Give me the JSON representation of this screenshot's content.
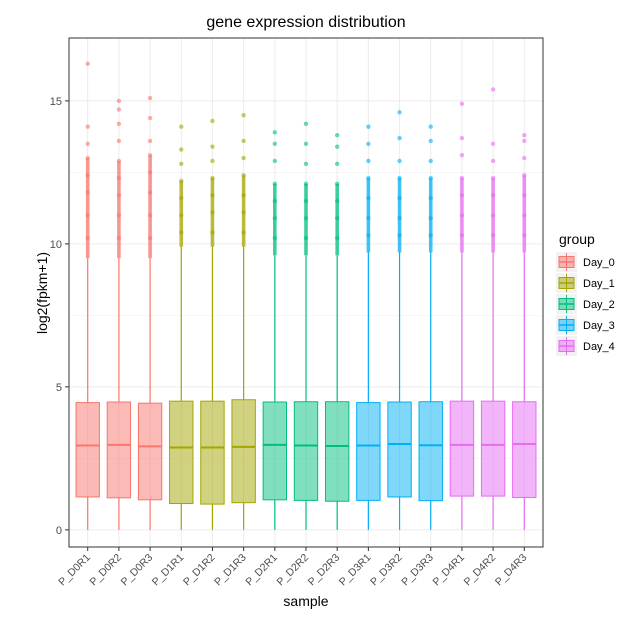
{
  "chart_data": {
    "type": "boxplot",
    "title": "gene expression distribution",
    "xlabel": "sample",
    "ylabel": "log2(fpkm+1)",
    "ylim": [
      -0.6,
      17.2
    ],
    "yticks": [
      0,
      5,
      10,
      15
    ],
    "grid": true,
    "legend": {
      "title": "group",
      "placement": "right",
      "entries": [
        "Day_0",
        "Day_1",
        "Day_2",
        "Day_3",
        "Day_4"
      ]
    },
    "group_colors": {
      "Day_0": "#F8766D",
      "Day_1": "#A3A500",
      "Day_2": "#00BF7D",
      "Day_3": "#00B0F6",
      "Day_4": "#E76BF3"
    },
    "samples": [
      {
        "name": "P_D0R1",
        "group": "Day_0",
        "q1": 1.15,
        "median": 2.95,
        "q3": 4.45,
        "whisker_low": 0,
        "whisker_high": 9.5,
        "outliers": [
          10.2,
          11.0,
          11.8,
          12.4,
          13.0,
          13.5,
          14.1,
          16.3
        ]
      },
      {
        "name": "P_D0R2",
        "group": "Day_0",
        "q1": 1.12,
        "median": 2.97,
        "q3": 4.47,
        "whisker_low": 0,
        "whisker_high": 9.5,
        "outliers": [
          10.2,
          11.0,
          11.7,
          12.3,
          12.9,
          13.6,
          14.2,
          14.7,
          15.0
        ]
      },
      {
        "name": "P_D0R3",
        "group": "Day_0",
        "q1": 1.05,
        "median": 2.92,
        "q3": 4.43,
        "whisker_low": 0,
        "whisker_high": 9.5,
        "outliers": [
          10.2,
          11.0,
          11.8,
          12.5,
          13.1,
          13.6,
          14.4,
          15.1
        ]
      },
      {
        "name": "P_D1R1",
        "group": "Day_1",
        "q1": 0.92,
        "median": 2.88,
        "q3": 4.5,
        "whisker_low": 0,
        "whisker_high": 9.9,
        "outliers": [
          10.4,
          11.0,
          11.6,
          12.2,
          12.8,
          13.3,
          14.1
        ]
      },
      {
        "name": "P_D1R2",
        "group": "Day_1",
        "q1": 0.9,
        "median": 2.88,
        "q3": 4.5,
        "whisker_low": 0,
        "whisker_high": 9.9,
        "outliers": [
          10.4,
          11.1,
          11.7,
          12.3,
          12.9,
          13.4,
          14.3
        ]
      },
      {
        "name": "P_D1R3",
        "group": "Day_1",
        "q1": 0.95,
        "median": 2.9,
        "q3": 4.55,
        "whisker_low": 0,
        "whisker_high": 9.9,
        "outliers": [
          10.4,
          11.1,
          11.7,
          12.4,
          13.0,
          13.6,
          14.5
        ]
      },
      {
        "name": "P_D2R1",
        "group": "Day_2",
        "q1": 1.05,
        "median": 2.97,
        "q3": 4.47,
        "whisker_low": 0,
        "whisker_high": 9.6,
        "outliers": [
          10.2,
          10.9,
          11.5,
          12.1,
          12.9,
          13.5,
          13.9
        ]
      },
      {
        "name": "P_D2R2",
        "group": "Day_2",
        "q1": 1.03,
        "median": 2.95,
        "q3": 4.48,
        "whisker_low": 0,
        "whisker_high": 9.6,
        "outliers": [
          10.2,
          10.9,
          11.5,
          12.1,
          12.8,
          13.5,
          14.2
        ]
      },
      {
        "name": "P_D2R3",
        "group": "Day_2",
        "q1": 1.0,
        "median": 2.93,
        "q3": 4.48,
        "whisker_low": 0,
        "whisker_high": 9.6,
        "outliers": [
          10.2,
          10.9,
          11.5,
          12.1,
          12.8,
          13.4,
          13.8
        ]
      },
      {
        "name": "P_D3R1",
        "group": "Day_3",
        "q1": 1.03,
        "median": 2.95,
        "q3": 4.45,
        "whisker_low": 0,
        "whisker_high": 9.7,
        "outliers": [
          10.3,
          10.9,
          11.6,
          12.3,
          12.9,
          13.5,
          14.1
        ]
      },
      {
        "name": "P_D3R2",
        "group": "Day_3",
        "q1": 1.15,
        "median": 3.0,
        "q3": 4.47,
        "whisker_low": 0,
        "whisker_high": 9.7,
        "outliers": [
          10.3,
          10.9,
          11.6,
          12.3,
          12.9,
          13.7,
          14.6
        ]
      },
      {
        "name": "P_D3R3",
        "group": "Day_3",
        "q1": 1.02,
        "median": 2.96,
        "q3": 4.48,
        "whisker_low": 0,
        "whisker_high": 9.7,
        "outliers": [
          10.3,
          10.9,
          11.6,
          12.3,
          12.9,
          13.6,
          14.1
        ]
      },
      {
        "name": "P_D4R1",
        "group": "Day_4",
        "q1": 1.18,
        "median": 2.97,
        "q3": 4.5,
        "whisker_low": 0,
        "whisker_high": 9.7,
        "outliers": [
          10.3,
          11.0,
          11.7,
          12.3,
          13.1,
          13.7,
          14.9
        ]
      },
      {
        "name": "P_D4R2",
        "group": "Day_4",
        "q1": 1.18,
        "median": 2.97,
        "q3": 4.5,
        "whisker_low": 0,
        "whisker_high": 9.7,
        "outliers": [
          10.3,
          11.0,
          11.7,
          12.3,
          12.9,
          13.5,
          15.4
        ]
      },
      {
        "name": "P_D4R3",
        "group": "Day_4",
        "q1": 1.13,
        "median": 3.0,
        "q3": 4.48,
        "whisker_low": 0,
        "whisker_high": 9.7,
        "outliers": [
          10.3,
          11.0,
          11.7,
          12.4,
          13.0,
          13.6,
          13.8
        ]
      }
    ]
  }
}
